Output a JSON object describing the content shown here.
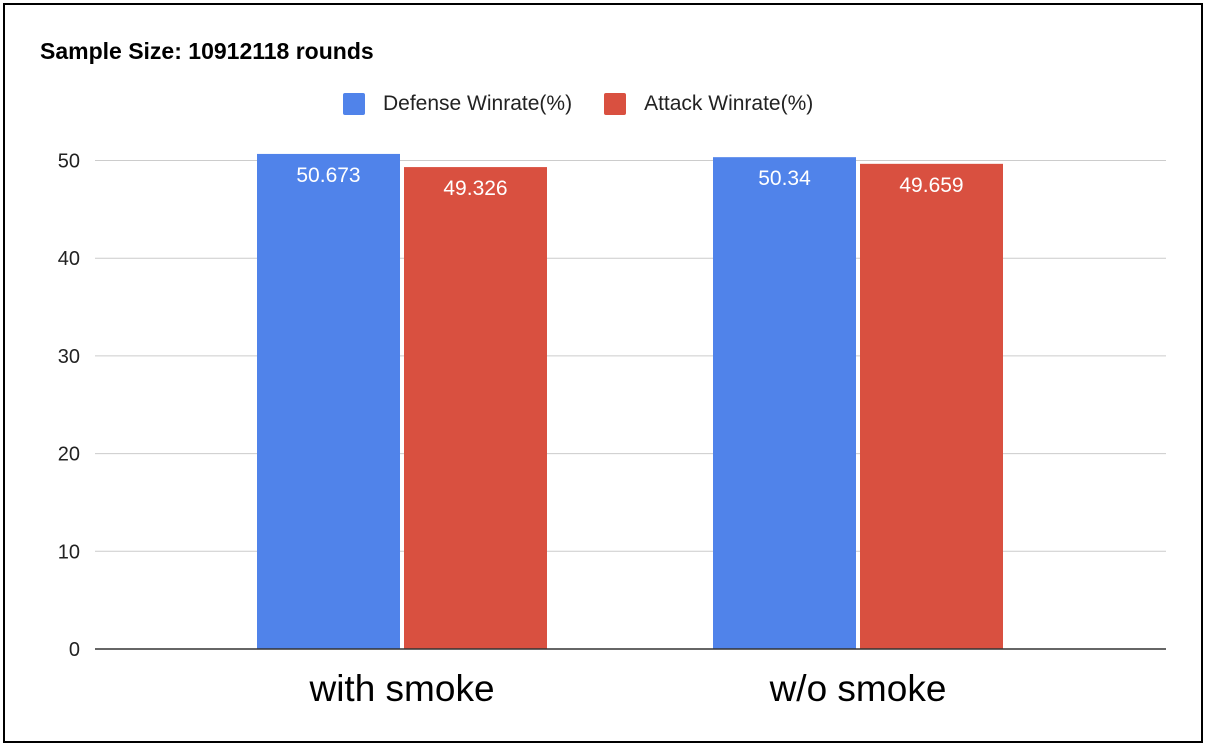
{
  "chart_data": {
    "type": "bar",
    "title": "Sample Size: 10912118 rounds",
    "xlabel": "",
    "ylabel": "",
    "categories": [
      "with smoke",
      "w/o smoke"
    ],
    "series": [
      {
        "name": "Defense Winrate(%)",
        "values": [
          50.673,
          50.34
        ],
        "labels": [
          "50.673",
          "50.34"
        ],
        "color": "#5083ea"
      },
      {
        "name": "Attack Winrate(%)",
        "values": [
          49.326,
          49.659
        ],
        "labels": [
          "49.326",
          "49.659"
        ],
        "color": "#d95040"
      }
    ],
    "ylim": [
      0,
      50
    ],
    "yticks": [
      0,
      10,
      20,
      30,
      40,
      50
    ],
    "grid": true,
    "legend_position": "top"
  }
}
